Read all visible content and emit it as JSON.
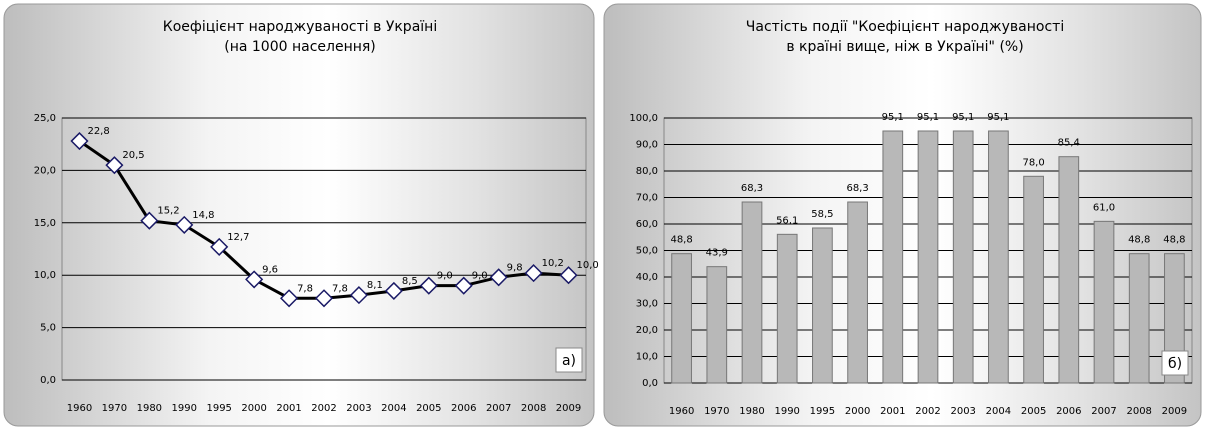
{
  "chart_data": [
    {
      "type": "line",
      "title": [
        "Коефіцієнт народжуваності в Україні",
        "(на 1000 населення)"
      ],
      "annotation": "а)",
      "categories": [
        "1960",
        "1970",
        "1980",
        "1990",
        "1995",
        "2000",
        "2001",
        "2002",
        "2003",
        "2004",
        "2005",
        "2006",
        "2007",
        "2008",
        "2009"
      ],
      "values": [
        22.8,
        20.5,
        15.2,
        14.8,
        12.7,
        9.6,
        7.8,
        7.8,
        8.1,
        8.5,
        9.0,
        9.0,
        9.8,
        10.2,
        10.0
      ],
      "value_labels": [
        "22,8",
        "20,5",
        "15,2",
        "14,8",
        "12,7",
        "9,6",
        "7,8",
        "7,8",
        "8,1",
        "8,5",
        "9,0",
        "9,0",
        "9,8",
        "10,2",
        "10,0"
      ],
      "color": "#000000",
      "ylim": [
        0,
        25
      ],
      "yticks": [
        {
          "value": 0,
          "label": "0,0"
        },
        {
          "value": 5,
          "label": "5,0"
        },
        {
          "value": 10,
          "label": "10,0"
        },
        {
          "value": 15,
          "label": "15,0"
        },
        {
          "value": 20,
          "label": "20,0"
        },
        {
          "value": 25,
          "label": "25,0"
        }
      ],
      "grid": true
    },
    {
      "type": "bar",
      "title": [
        "Частість події \"Коефіцієнт народжуваності",
        "в країні вище, ніж в Україні\" (%)"
      ],
      "annotation": "б)",
      "categories": [
        "1960",
        "1970",
        "1980",
        "1990",
        "1995",
        "2000",
        "2001",
        "2002",
        "2003",
        "2004",
        "2005",
        "2006",
        "2007",
        "2008",
        "2009"
      ],
      "values": [
        48.8,
        43.9,
        68.3,
        56.1,
        58.5,
        68.3,
        95.1,
        95.1,
        95.1,
        95.1,
        78.0,
        85.4,
        61.0,
        48.8,
        48.8
      ],
      "value_labels": [
        "48,8",
        "43,9",
        "68,3",
        "56,1",
        "58,5",
        "68,3",
        "95,1",
        "95,1",
        "95,1",
        "95,1",
        "78,0",
        "85,4",
        "61,0",
        "48,8",
        "48,8"
      ],
      "color": "#b8b8b8",
      "ylim": [
        0,
        100
      ],
      "yticks": [
        {
          "value": 0,
          "label": "0,0"
        },
        {
          "value": 10,
          "label": "10,0"
        },
        {
          "value": 20,
          "label": "20,0"
        },
        {
          "value": 30,
          "label": "30,0"
        },
        {
          "value": 40,
          "label": "40,0"
        },
        {
          "value": 50,
          "label": "50,0"
        },
        {
          "value": 60,
          "label": "60,0"
        },
        {
          "value": 70,
          "label": "70,0"
        },
        {
          "value": 80,
          "label": "80,0"
        },
        {
          "value": 90,
          "label": "90,0"
        },
        {
          "value": 100,
          "label": "100,0"
        }
      ],
      "grid": true
    }
  ]
}
